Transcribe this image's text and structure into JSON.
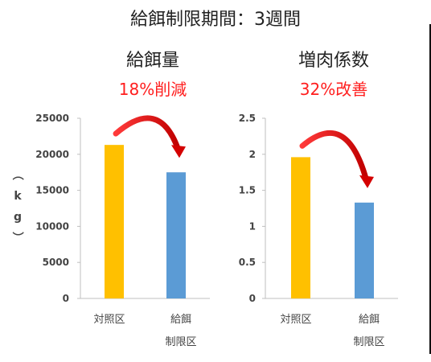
{
  "main_title": "給餌制限期間：3週間",
  "chart_data": [
    {
      "type": "bar",
      "title": "給餌量",
      "subtitle": "18%削減",
      "ylabel": "（kg）",
      "categories": [
        "対照区",
        "給餌制限区"
      ],
      "category_lines": [
        [
          "対照区"
        ],
        [
          "給餌",
          "制限区"
        ]
      ],
      "values": [
        21300,
        17500
      ],
      "ylim": [
        0,
        25000
      ],
      "yticks": [
        "0",
        "5000",
        "10000",
        "15000",
        "20000",
        "25000"
      ],
      "bar_colors": [
        "#ffc000",
        "#5b9bd5"
      ],
      "annotation": "curved red arrow from 対照区 bar to 給餌制限区 bar"
    },
    {
      "type": "bar",
      "title": "増肉係数",
      "subtitle": "32%改善",
      "ylabel": "",
      "categories": [
        "対照区",
        "給餌制限区"
      ],
      "category_lines": [
        [
          "対照区"
        ],
        [
          "給餌",
          "制限区"
        ]
      ],
      "values": [
        1.96,
        1.33
      ],
      "ylim": [
        0,
        2.5
      ],
      "yticks": [
        "0",
        "0.5",
        "1",
        "1.5",
        "2",
        "2.5"
      ],
      "bar_colors": [
        "#ffc000",
        "#5b9bd5"
      ],
      "annotation": "curved red arrow from 対照区 bar to 給餌制限区 bar"
    }
  ],
  "colors": {
    "accent_red": "#ff1e1e",
    "arrow_red": "#d40000",
    "axis": "#bfbfbf"
  }
}
